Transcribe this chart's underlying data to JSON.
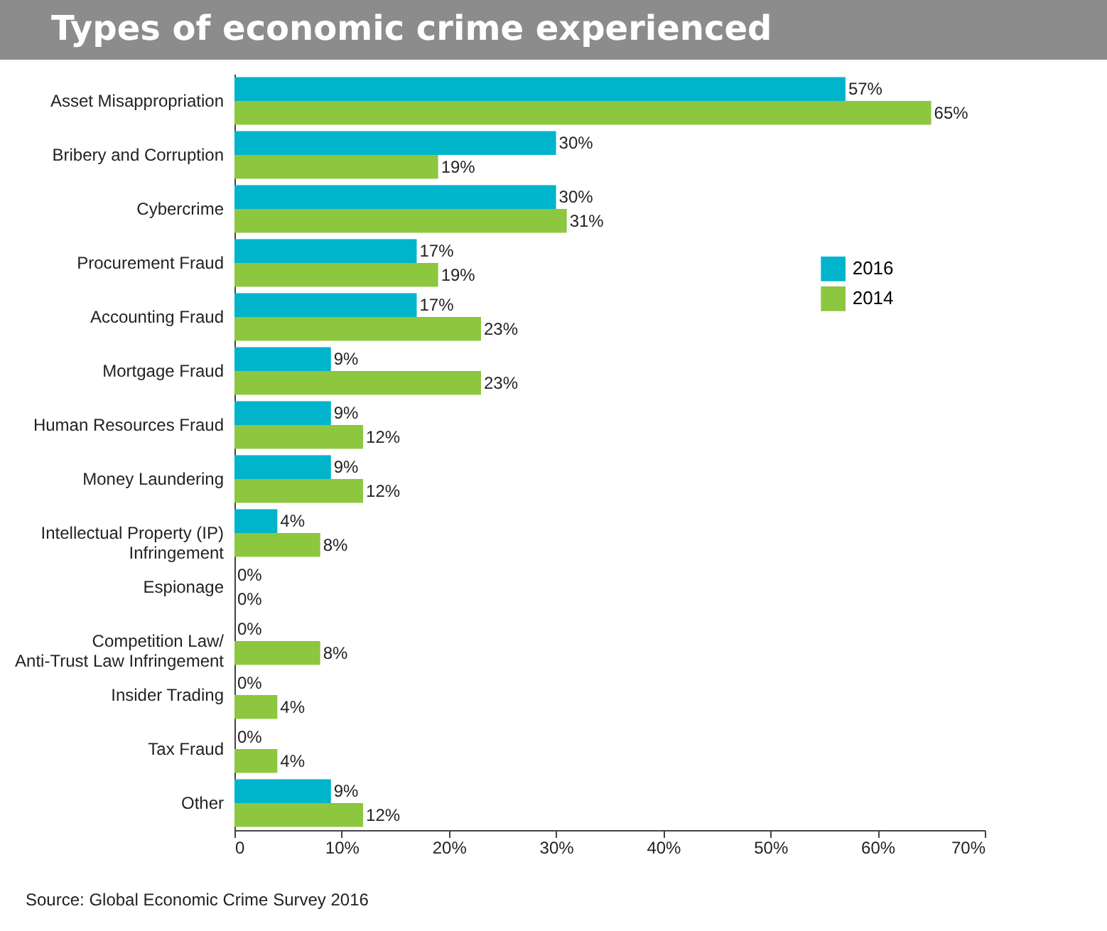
{
  "chart_data": {
    "type": "bar",
    "orientation": "horizontal",
    "title": "Types of economic crime experienced",
    "categories": [
      "Asset Misappropriation",
      "Bribery and Corruption",
      "Cybercrime",
      "Procurement Fraud",
      "Accounting Fraud",
      "Mortgage Fraud",
      "Human Resources Fraud",
      "Money Laundering",
      "Intellectual Property (IP)\nInfringement",
      "Espionage",
      "Competition Law/\nAnti-Trust Law Infringement",
      "Insider Trading",
      "Tax Fraud",
      "Other"
    ],
    "series": [
      {
        "name": "2016",
        "color": "#00b4cc",
        "values": [
          57,
          30,
          30,
          17,
          17,
          9,
          9,
          9,
          4,
          0,
          0,
          0,
          0,
          9
        ],
        "value_labels": [
          "57%",
          "30%",
          "30%",
          "17%",
          "17%",
          "9%",
          "9%",
          "9%",
          "4%",
          "0%",
          "0%",
          "0%",
          "0%",
          "9%"
        ]
      },
      {
        "name": "2014",
        "color": "#8dc63f",
        "values": [
          65,
          19,
          31,
          19,
          23,
          23,
          12,
          12,
          8,
          0,
          8,
          4,
          4,
          12
        ],
        "value_labels": [
          "65%",
          "19%",
          "31%",
          "19%",
          "23%",
          "23%",
          "12%",
          "12%",
          "8%",
          "0%",
          "8%",
          "4%",
          "4%",
          "12%"
        ]
      }
    ],
    "xlim": [
      0,
      70
    ],
    "xticks": [
      0,
      {
        "value": 10,
        "label": "10%"
      },
      {
        "value": 20,
        "label": "20%"
      },
      {
        "value": 30,
        "label": "30%"
      },
      {
        "value": 40,
        "label": "40%"
      },
      {
        "value": 50,
        "label": "50%"
      },
      {
        "value": 60,
        "label": "60%"
      },
      {
        "value": 70,
        "label": "70%"
      }
    ],
    "grid": false,
    "legend": "right",
    "annotations": [
      "Source: Global Economic Crime Survey 2016"
    ]
  }
}
